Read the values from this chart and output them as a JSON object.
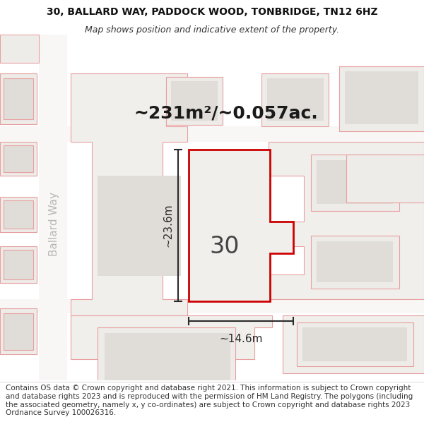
{
  "title_line1": "30, BALLARD WAY, PADDOCK WOOD, TONBRIDGE, TN12 6HZ",
  "title_line2": "Map shows position and indicative extent of the property.",
  "area_text": "~231m²/~0.057ac.",
  "width_label": "~14.6m",
  "height_label": "~23.6m",
  "number_label": "30",
  "street_label": "Ballard Way",
  "footer_text": "Contains OS data © Crown copyright and database right 2021. This information is subject to Crown copyright and database rights 2023 and is reproduced with the permission of HM Land Registry. The polygons (including the associated geometry, namely x, y co-ordinates) are subject to Crown copyright and database rights 2023 Ordnance Survey 100026316.",
  "map_bg": "#f5f4f2",
  "road_fill": "#e8e6e2",
  "building_outer_fill": "#eeece8",
  "building_inner_fill": "#e0ddd8",
  "block_fill": "#f0efec",
  "property_fill": "#f0efec",
  "property_edge": "#cc0000",
  "pink_edge": "#e8a0a0",
  "dim_color": "#2a2a2a",
  "street_color": "#b8b8b8",
  "text_color": "#1a1a1a",
  "white": "#ffffff",
  "title_fontsize": 10,
  "subtitle_fontsize": 9,
  "footer_fontsize": 7.5,
  "area_fontsize": 18,
  "number_fontsize": 24,
  "street_fontsize": 11,
  "dim_fontsize": 11
}
